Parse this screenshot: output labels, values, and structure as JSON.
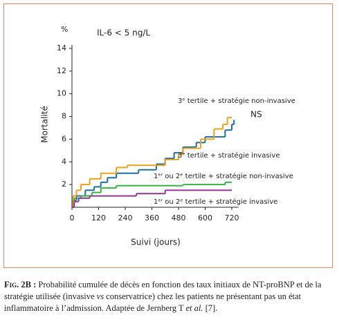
{
  "chart_data": {
    "type": "step",
    "ylabel": "Mortalité",
    "yunit": "%",
    "xlabel": "Suivi (jours)",
    "annotations": [
      "IL-6 < 5 ng/L",
      "NS"
    ],
    "xlim": [
      0,
      750
    ],
    "ylim": [
      0,
      14
    ],
    "xticks": [
      0,
      120,
      240,
      360,
      480,
      600,
      720
    ],
    "yticks": [
      2,
      4,
      6,
      8,
      10,
      12,
      14
    ],
    "series": [
      {
        "name": "3ᵉ tertile + stratégie non-invasive",
        "color": "#1f6d9e",
        "x": [
          0,
          5,
          20,
          60,
          100,
          130,
          160,
          200,
          300,
          380,
          420,
          460,
          500,
          560,
          600,
          690,
          720,
          730
        ],
        "values": [
          0,
          0.6,
          1.0,
          1.5,
          1.8,
          2.2,
          2.6,
          3.0,
          3.3,
          3.8,
          4.3,
          4.8,
          5.3,
          5.7,
          6.2,
          6.8,
          7.3,
          7.7
        ]
      },
      {
        "name": "3ᵉ tertile + stratégie invasive",
        "color": "#e9a21f",
        "x": [
          0,
          5,
          20,
          40,
          80,
          130,
          200,
          250,
          420,
          480,
          500,
          580,
          640,
          680,
          700,
          720
        ],
        "values": [
          0,
          1.0,
          1.5,
          2.0,
          2.5,
          3.0,
          3.5,
          3.7,
          4.2,
          4.7,
          5.2,
          6.0,
          6.9,
          7.3,
          7.9,
          7.9
        ]
      },
      {
        "name": "1ᵉʳ ou 2ᵉ tertile + stratégie non-invasive",
        "color": "#3bae4a",
        "x": [
          0,
          10,
          40,
          90,
          130,
          200,
          500,
          690,
          720
        ],
        "values": [
          0,
          0.8,
          1.0,
          1.3,
          1.7,
          1.9,
          2.0,
          2.2,
          2.2
        ]
      },
      {
        "name": "1ᵉʳ ou 2ᵉ tertile + stratégie invasive",
        "color": "#8b3a8c",
        "x": [
          0,
          10,
          30,
          80,
          290,
          420,
          700,
          720
        ],
        "values": [
          0,
          0.5,
          0.8,
          1.0,
          1.2,
          1.5,
          1.5,
          1.5
        ]
      }
    ]
  },
  "caption": {
    "label": "Fig. 2B :",
    "parts": [
      " Probabilité cumulée de décès en fonction des taux initiaux de NT-proBNP et de la stratégie utilisée (invasive ",
      "vs",
      " conservatrice) chez les patients ne présentant pas un état inflammatoire à l’admission. Adaptée de Jernberg T ",
      "et al.",
      " [7]."
    ]
  }
}
